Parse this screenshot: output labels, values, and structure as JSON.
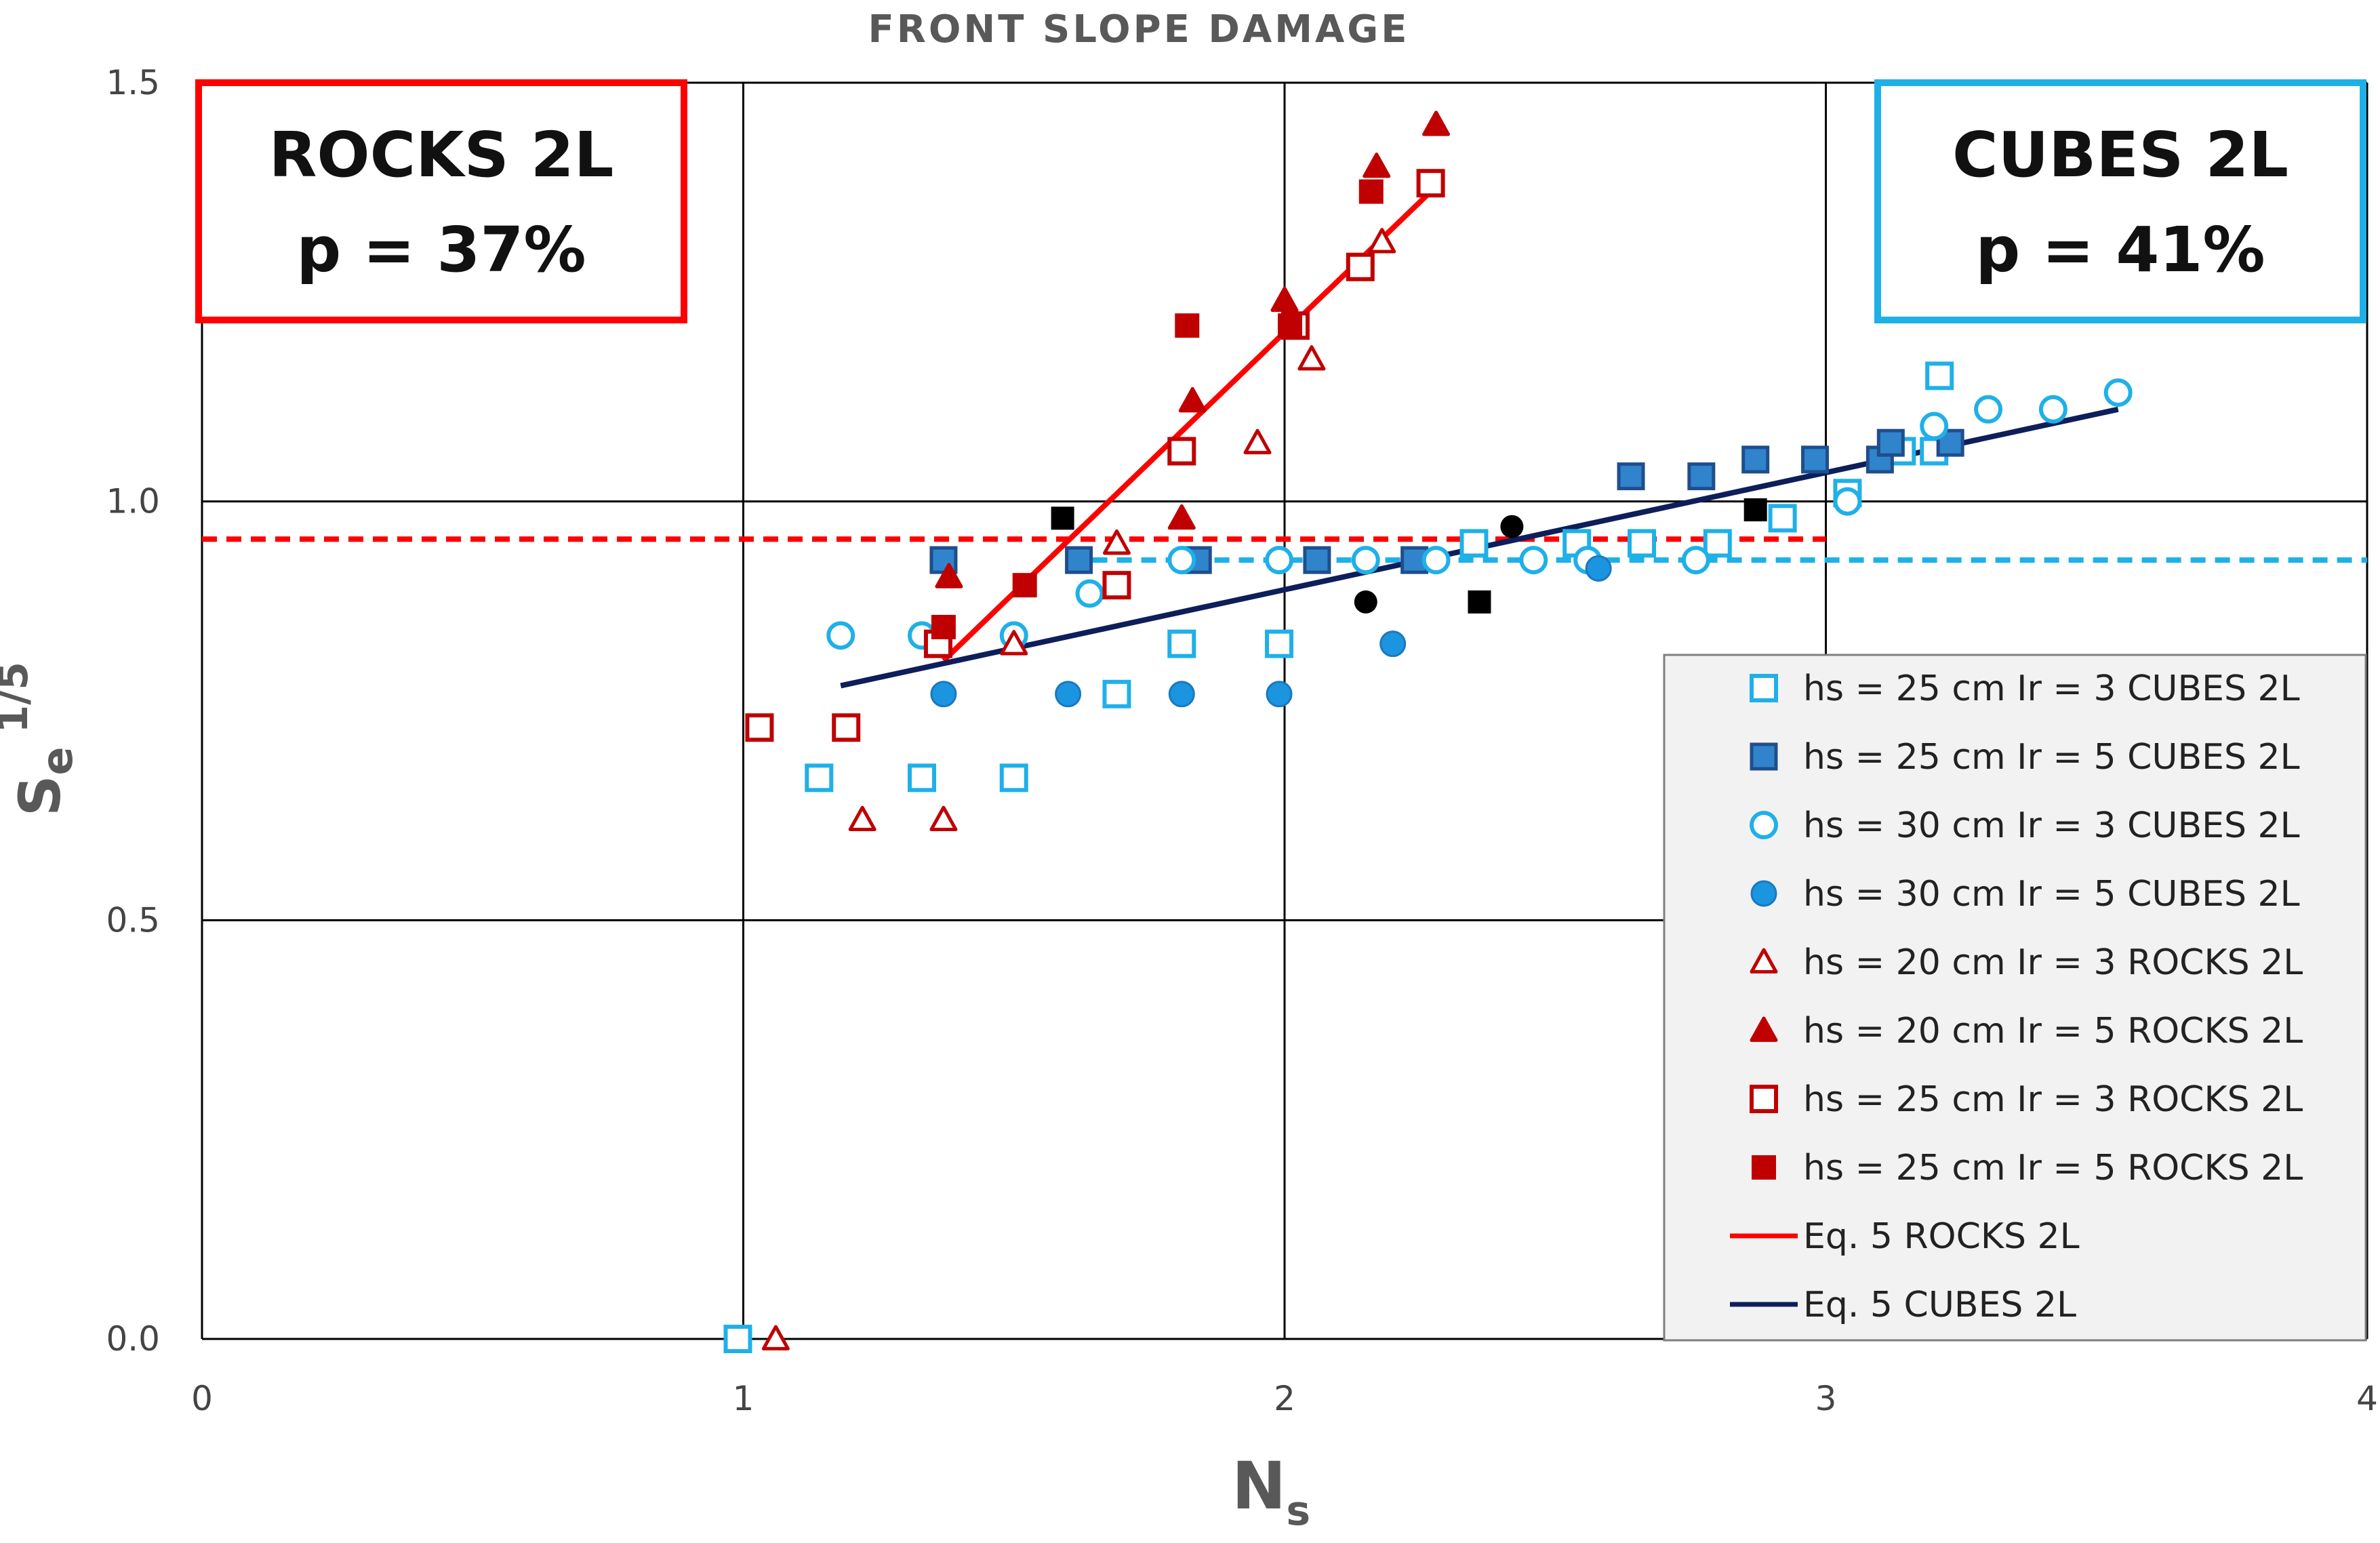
{
  "chart_data": {
    "type": "scatter",
    "title": "FRONT SLOPE DAMAGE",
    "xlabel": "Ns",
    "xlabel_main": "N",
    "xlabel_sub": "s",
    "ylabel": "Se 1/5",
    "ylabel_main": "S",
    "ylabel_sub": "e",
    "ylabel_sup": "1/5",
    "xlim": [
      0,
      4
    ],
    "ylim": [
      0,
      1.5
    ],
    "xticks": [
      "0",
      "1",
      "2",
      "3",
      "4"
    ],
    "yticks": [
      "0.0",
      "0.5",
      "1.0",
      "1.5"
    ],
    "grid": true,
    "legend_position": "bottom-right",
    "annotations": [
      {
        "line1": "ROCKS 2L",
        "line2": "p = 37%",
        "color": "#ff0000"
      },
      {
        "line1": "CUBES 2L",
        "line2": "p = 41%",
        "color": "#1fb0e8"
      }
    ],
    "reference_lines": [
      {
        "y": 0.955,
        "x_range": [
          0,
          3
        ],
        "color": "#ff0000",
        "style": "dashed"
      },
      {
        "y": 0.93,
        "x_range": [
          1.6,
          4
        ],
        "color": "#1fb0e8",
        "style": "dashed"
      }
    ],
    "series": [
      {
        "name": "hs = 25 cm Ir = 3 CUBES 2L",
        "marker": "square-open",
        "color": "#1fb0e8",
        "points": [
          [
            0.99,
            0.0
          ],
          [
            1.14,
            0.67
          ],
          [
            1.33,
            0.67
          ],
          [
            1.5,
            0.67
          ],
          [
            1.69,
            0.77
          ],
          [
            1.81,
            0.83
          ],
          [
            1.99,
            0.83
          ],
          [
            2.35,
            0.95
          ],
          [
            2.54,
            0.95
          ],
          [
            2.66,
            0.95
          ],
          [
            2.8,
            0.95
          ],
          [
            2.92,
            0.98
          ],
          [
            3.04,
            1.01
          ],
          [
            3.14,
            1.06
          ],
          [
            3.2,
            1.06
          ],
          [
            3.21,
            1.15
          ]
        ]
      },
      {
        "name": "hs = 25 cm Ir = 5 CUBES 2L",
        "marker": "square-filled",
        "color": "#2f84cc",
        "points": [
          [
            1.37,
            0.93
          ],
          [
            1.62,
            0.93
          ],
          [
            1.84,
            0.93
          ],
          [
            2.06,
            0.93
          ],
          [
            2.24,
            0.93
          ],
          [
            2.64,
            1.03
          ],
          [
            2.77,
            1.03
          ],
          [
            2.87,
            1.05
          ],
          [
            2.98,
            1.05
          ],
          [
            3.1,
            1.05
          ],
          [
            3.12,
            1.07
          ],
          [
            3.23,
            1.07
          ]
        ]
      },
      {
        "name": "hs = 30 cm Ir = 3 CUBES 2L",
        "marker": "circle-open",
        "color": "#1fb0e8",
        "points": [
          [
            1.18,
            0.84
          ],
          [
            1.33,
            0.84
          ],
          [
            1.5,
            0.84
          ],
          [
            1.64,
            0.89
          ],
          [
            1.81,
            0.93
          ],
          [
            1.99,
            0.93
          ],
          [
            2.15,
            0.93
          ],
          [
            2.28,
            0.93
          ],
          [
            2.46,
            0.93
          ],
          [
            2.56,
            0.93
          ],
          [
            2.76,
            0.93
          ],
          [
            3.04,
            1.0
          ],
          [
            3.2,
            1.09
          ],
          [
            3.3,
            1.11
          ],
          [
            3.42,
            1.11
          ],
          [
            3.54,
            1.13
          ]
        ]
      },
      {
        "name": "hs = 30 cm Ir = 5 CUBES 2L",
        "marker": "circle-filled",
        "color": "#1b95e0",
        "points": [
          [
            1.37,
            0.77
          ],
          [
            1.6,
            0.77
          ],
          [
            1.81,
            0.77
          ],
          [
            1.99,
            0.77
          ],
          [
            2.2,
            0.83
          ],
          [
            2.58,
            0.92
          ]
        ]
      },
      {
        "name": "hs = 20 cm Ir = 3 ROCKS 2L",
        "marker": "triangle-open",
        "color": "#c00000",
        "points": [
          [
            1.06,
            0.0
          ],
          [
            1.22,
            0.62
          ],
          [
            1.37,
            0.62
          ],
          [
            1.5,
            0.83
          ],
          [
            1.69,
            0.95
          ],
          [
            1.95,
            1.07
          ],
          [
            2.05,
            1.17
          ],
          [
            2.18,
            1.31
          ]
        ]
      },
      {
        "name": "hs = 20 cm Ir = 5 ROCKS 2L",
        "marker": "triangle-filled",
        "color": "#c00000",
        "points": [
          [
            1.38,
            0.91
          ],
          [
            1.81,
            0.98
          ],
          [
            1.83,
            1.12
          ],
          [
            2.0,
            1.24
          ],
          [
            2.17,
            1.4
          ],
          [
            2.28,
            1.45
          ]
        ]
      },
      {
        "name": "hs = 25 cm Ir = 3 ROCKS 2L",
        "marker": "square-open",
        "color": "#c00000",
        "points": [
          [
            1.03,
            0.73
          ],
          [
            1.19,
            0.73
          ],
          [
            1.36,
            0.83
          ],
          [
            1.69,
            0.9
          ],
          [
            1.81,
            1.06
          ],
          [
            2.02,
            1.21
          ],
          [
            2.14,
            1.28
          ],
          [
            2.27,
            1.38
          ]
        ]
      },
      {
        "name": "hs = 25 cm Ir = 5 ROCKS 2L",
        "marker": "square-filled",
        "color": "#c00000",
        "points": [
          [
            1.37,
            0.85
          ],
          [
            1.52,
            0.9
          ],
          [
            1.82,
            1.21
          ],
          [
            2.01,
            1.21
          ],
          [
            2.16,
            1.37
          ]
        ]
      },
      {
        "name": "Unlabelled black markers",
        "marker": "mixed-black",
        "color": "#000000",
        "points": [
          [
            1.59,
            0.98
          ],
          [
            2.15,
            0.88
          ],
          [
            2.36,
            0.88
          ],
          [
            2.42,
            0.97
          ],
          [
            2.87,
            0.99
          ]
        ]
      },
      {
        "name": "Eq. 5 ROCKS 2L",
        "marker": "line",
        "color": "#ff0000",
        "points": [
          [
            1.37,
            0.81
          ],
          [
            2.27,
            1.37
          ]
        ]
      },
      {
        "name": "Eq. 5 CUBES 2L",
        "marker": "line",
        "color": "#0d1e5a",
        "points": [
          [
            1.18,
            0.78
          ],
          [
            3.54,
            1.11
          ]
        ]
      }
    ]
  },
  "legend": [
    {
      "label": "hs = 25 cm Ir = 3 CUBES 2L",
      "marker": "square-open",
      "color": "#1fb0e8"
    },
    {
      "label": "hs = 25 cm Ir = 5 CUBES 2L",
      "marker": "square-filled",
      "color": "#2f84cc"
    },
    {
      "label": "hs = 30 cm Ir = 3 CUBES 2L",
      "marker": "circle-open",
      "color": "#1fb0e8"
    },
    {
      "label": "hs = 30 cm Ir = 5 CUBES 2L",
      "marker": "circle-filled",
      "color": "#1b95e0"
    },
    {
      "label": "hs = 20 cm Ir = 3 ROCKS 2L",
      "marker": "triangle-open",
      "color": "#c00000"
    },
    {
      "label": "hs = 20 cm Ir = 5 ROCKS 2L",
      "marker": "triangle-filled",
      "color": "#c00000"
    },
    {
      "label": "hs = 25 cm Ir = 3 ROCKS 2L",
      "marker": "square-open",
      "color": "#c00000"
    },
    {
      "label": "hs = 25 cm Ir = 5 ROCKS 2L",
      "marker": "square-filled",
      "color": "#c00000"
    },
    {
      "label": "Eq. 5 ROCKS 2L",
      "marker": "line",
      "color": "#ff0000"
    },
    {
      "label": "Eq. 5 CUBES 2L",
      "marker": "line",
      "color": "#0d1e5a"
    }
  ]
}
